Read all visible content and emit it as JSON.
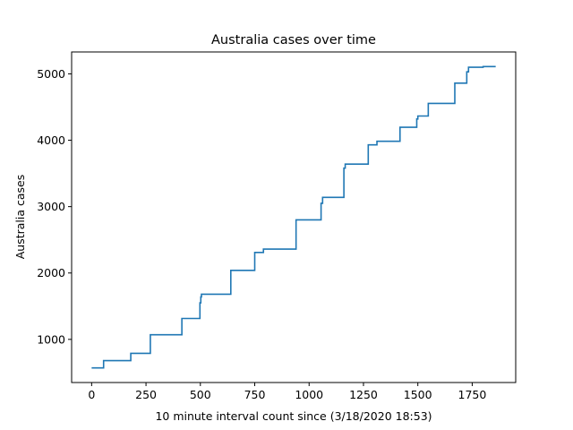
{
  "chart_data": {
    "type": "line",
    "title": "Australia cases over time",
    "xlabel": "10 minute interval count since (3/18/2020 18:53)",
    "ylabel": "Australia cases",
    "xlim": [
      -92,
      1950
    ],
    "ylim": [
      350,
      5330
    ],
    "xticks": [
      0,
      250,
      500,
      750,
      1000,
      1250,
      1500,
      1750
    ],
    "yticks": [
      1000,
      2000,
      3000,
      4000,
      5000
    ],
    "grid": false,
    "legend": "none",
    "series": [
      {
        "color": "#1f77b4",
        "step": "post",
        "x": [
          0,
          55,
          180,
          270,
          415,
          498,
          502,
          505,
          640,
          750,
          790,
          940,
          1055,
          1062,
          1160,
          1166,
          1272,
          1312,
          1418,
          1495,
          1500,
          1548,
          1670,
          1725,
          1733,
          1800,
          1858
        ],
        "y": [
          570,
          680,
          790,
          1070,
          1315,
          1550,
          1640,
          1680,
          2040,
          2310,
          2360,
          2800,
          3050,
          3140,
          3580,
          3640,
          3930,
          3985,
          4195,
          4320,
          4365,
          4555,
          4860,
          5030,
          5100,
          5110,
          5110
        ]
      }
    ]
  }
}
